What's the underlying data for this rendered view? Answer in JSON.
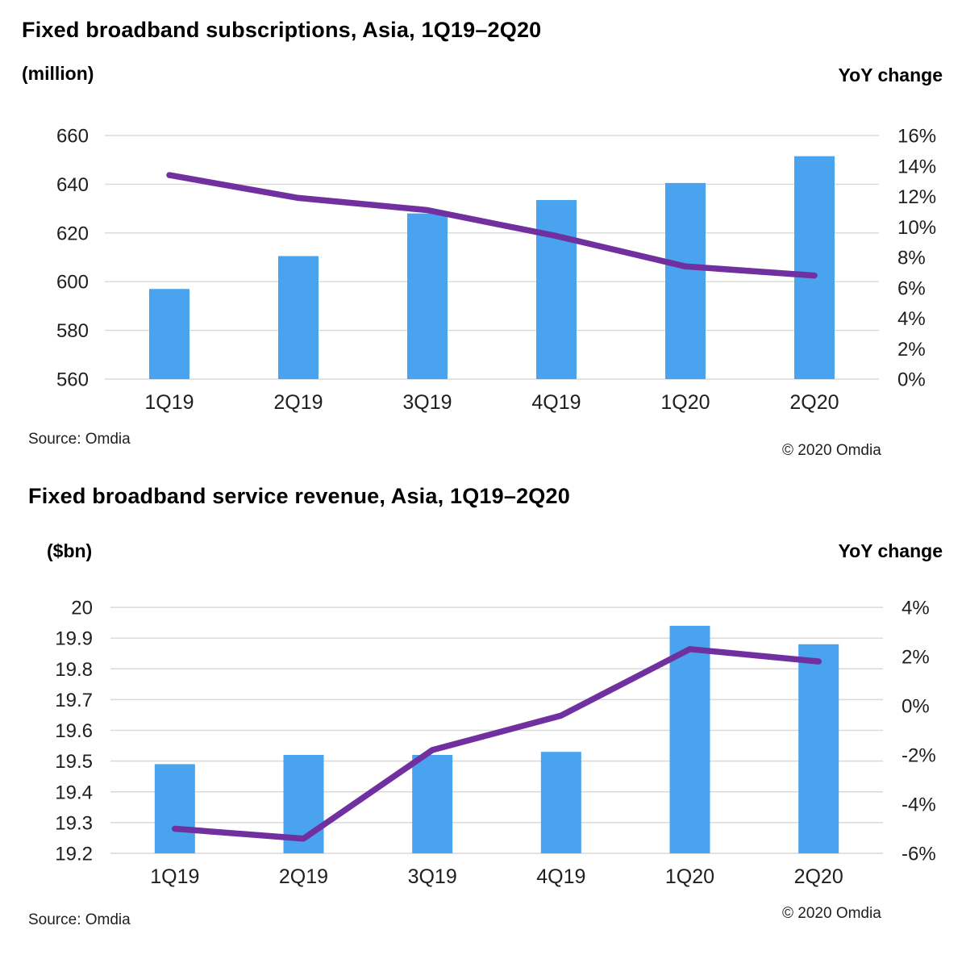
{
  "chart_data": [
    {
      "type": "bar",
      "subtype": "dual-axis bar + line combo",
      "title": "Fixed broadband subscriptions, Asia, 1Q19–2Q20",
      "categories": [
        "1Q19",
        "2Q19",
        "3Q19",
        "4Q19",
        "1Q20",
        "2Q20"
      ],
      "series": [
        {
          "name": "Fixed broadband subscriptions (million)",
          "type": "bar",
          "axis": "left",
          "color": "#49A3EE",
          "values": [
            597,
            610.5,
            628,
            633.5,
            640.5,
            651.5
          ]
        },
        {
          "name": "YoY change",
          "type": "line",
          "axis": "right",
          "color": "#7030A0",
          "unit": "%",
          "values": [
            13.4,
            11.9,
            11.1,
            9.4,
            7.4,
            6.8
          ]
        }
      ],
      "left_axis": {
        "label": "(million)",
        "min": 560,
        "max": 660,
        "step": 20
      },
      "right_axis": {
        "label": "YoY change",
        "min": 0,
        "max": 16,
        "step": 2,
        "tick_format": "percent"
      },
      "grid": true,
      "legend": "none",
      "colors": {
        "grid": "#D9D9D9",
        "text": "#1F1F1F"
      },
      "source": "Source: Omdia",
      "copyright": "© 2020 Omdia"
    },
    {
      "type": "bar",
      "subtype": "dual-axis bar + line combo",
      "title": "Fixed broadband service revenue, Asia, 1Q19–2Q20",
      "categories": [
        "1Q19",
        "2Q19",
        "3Q19",
        "4Q19",
        "1Q20",
        "2Q20"
      ],
      "series": [
        {
          "name": "Fixed broadband service revenue ($bn)",
          "type": "bar",
          "axis": "left",
          "color": "#49A3EE",
          "values": [
            19.49,
            19.52,
            19.52,
            19.53,
            19.94,
            19.88
          ]
        },
        {
          "name": "YoY change",
          "type": "line",
          "axis": "right",
          "color": "#7030A0",
          "unit": "%",
          "values": [
            -5.0,
            -5.4,
            -1.8,
            -0.4,
            2.3,
            1.8
          ]
        }
      ],
      "left_axis": {
        "label": "($bn)",
        "min": 19.2,
        "max": 20,
        "step": 0.1
      },
      "right_axis": {
        "label": "YoY change",
        "min": -6,
        "max": 4,
        "step": 2,
        "tick_format": "percent"
      },
      "grid": true,
      "legend": "none",
      "colors": {
        "grid": "#D9D9D9",
        "text": "#1F1F1F"
      },
      "source": "Source: Omdia",
      "copyright": "© 2020 Omdia"
    }
  ]
}
